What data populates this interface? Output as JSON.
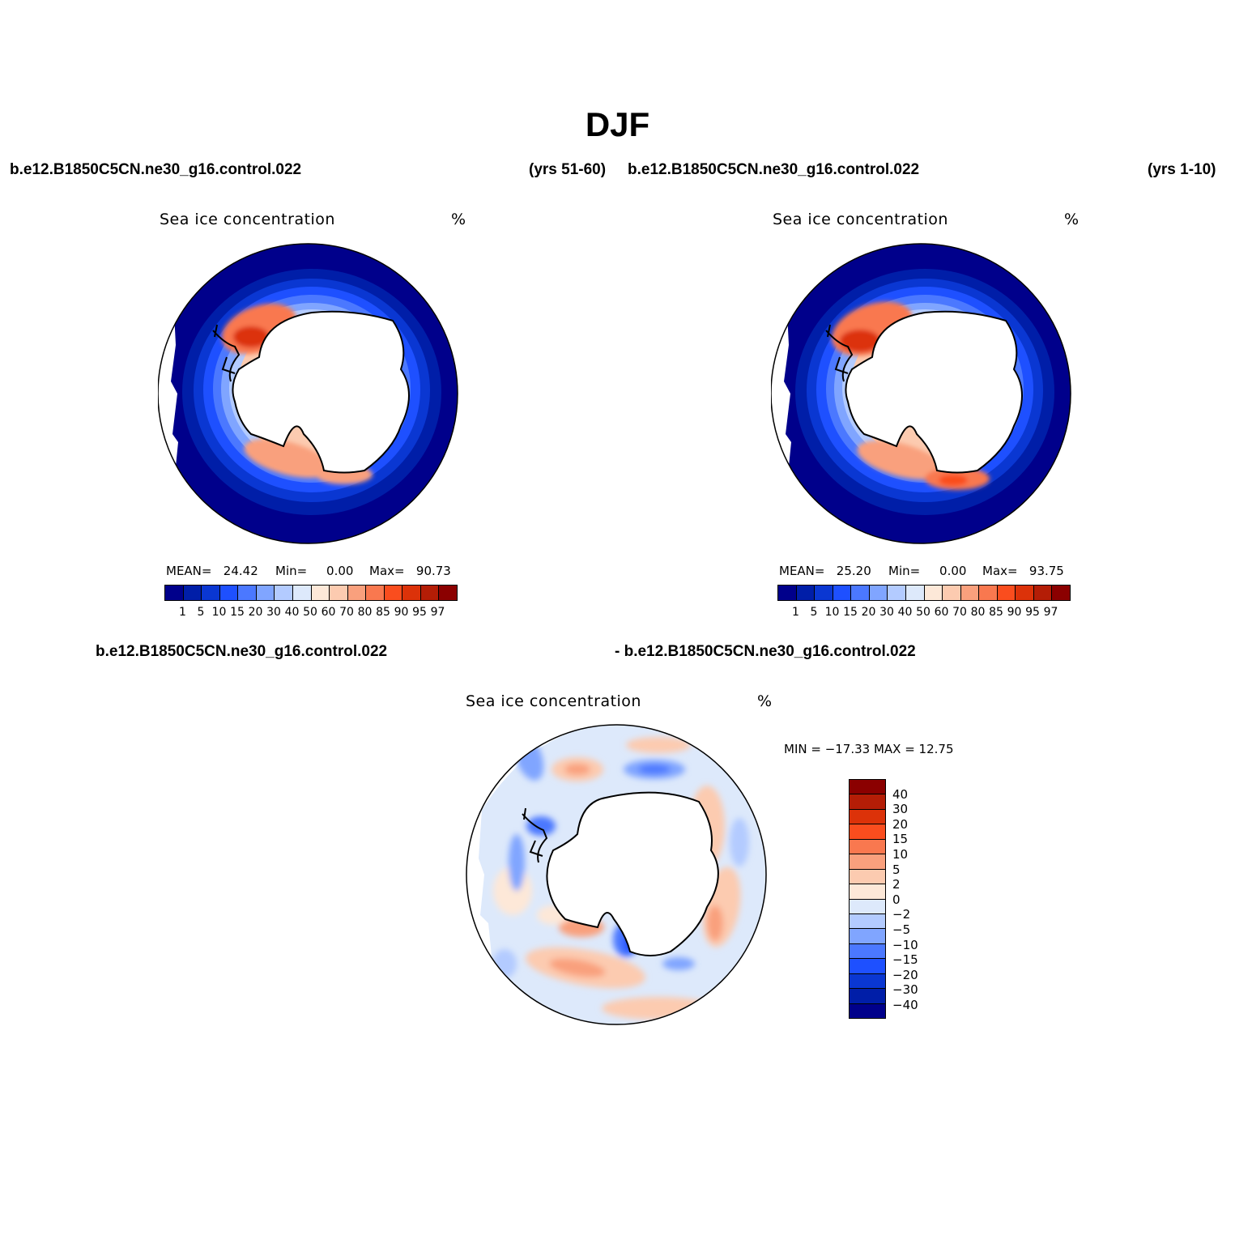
{
  "figure": {
    "title": "DJF",
    "panels": [
      {
        "case_label": "b.e12.B1850C5CN.ne30_g16.control.022",
        "period": "(yrs 51-60)",
        "variable": "Sea ice concentration",
        "units": "%",
        "stats": {
          "mean_label": "MEAN=",
          "mean": "24.42",
          "min_label": "Min=",
          "min": "0.00",
          "max_label": "Max=",
          "max": "90.73"
        }
      },
      {
        "case_label": "b.e12.B1850C5CN.ne30_g16.control.022",
        "period": "(yrs 1-10)",
        "variable": "Sea ice concentration",
        "units": "%",
        "stats": {
          "mean_label": "MEAN=",
          "mean": "25.20",
          "min_label": "Min=",
          "min": "0.00",
          "max_label": "Max=",
          "max": "93.75"
        }
      }
    ],
    "diff_panel": {
      "case_label_a": "b.e12.B1850C5CN.ne30_g16.control.022",
      "case_label_b": "- b.e12.B1850C5CN.ne30_g16.control.022",
      "variable": "Sea ice concentration",
      "units": "%",
      "stats_text": "MIN = −17.33  MAX =   12.75"
    }
  },
  "colorbar_abs": {
    "labels": [
      "1",
      "5",
      "10",
      "15",
      "20",
      "30",
      "40",
      "50",
      "60",
      "70",
      "80",
      "85",
      "90",
      "95",
      "97"
    ],
    "colors": [
      "#00008b",
      "#001ea8",
      "#0a37d2",
      "#1e50ff",
      "#4b78ff",
      "#80a5ff",
      "#b3cbff",
      "#dde9fb",
      "#fde8d8",
      "#fccbb0",
      "#f9a07d",
      "#f9784f",
      "#fa4d1e",
      "#dc3209",
      "#b41d06",
      "#8b0000"
    ]
  },
  "colorbar_diff": {
    "labels": [
      "40",
      "30",
      "20",
      "15",
      "10",
      "5",
      "2",
      "0",
      "−2",
      "−5",
      "−10",
      "−15",
      "−20",
      "−30",
      "−40"
    ],
    "colors": [
      "#8b0000",
      "#b41d06",
      "#dc3209",
      "#fa4d1e",
      "#f9784f",
      "#f9a07d",
      "#fccbb0",
      "#fde8d8",
      "#dde9fb",
      "#b3cbff",
      "#80a5ff",
      "#4b78ff",
      "#1e50ff",
      "#0a37d2",
      "#001ea8",
      "#00008b"
    ]
  }
}
